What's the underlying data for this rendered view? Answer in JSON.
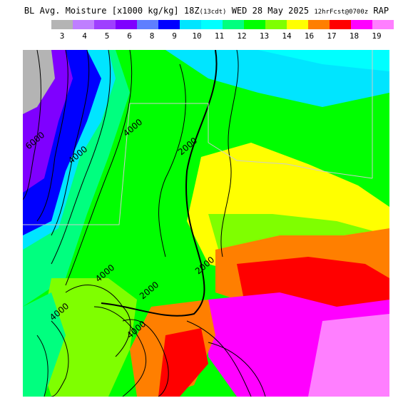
{
  "title": {
    "main": "BL Avg. Moisture [x1000 kg/kg] 18Z",
    "local": "(13cdt)",
    "date": " WED 28 May 2025 ",
    "forecast": "12hrFcst@0700z",
    "model": " RAP"
  },
  "legend": {
    "colors": [
      "#b4b4b4",
      "#bf7fff",
      "#9f3fff",
      "#7f00ff",
      "#5f7fff",
      "#0000ff",
      "#00e5ff",
      "#00ffff",
      "#00ff7f",
      "#00ff00",
      "#7fff00",
      "#ffff00",
      "#ff7f00",
      "#ff0000",
      "#ff00ff",
      "#ff7fff"
    ],
    "ticks": [
      "3",
      "4",
      "5",
      "6",
      "8",
      "9",
      "10",
      "11",
      "12",
      "13",
      "14",
      "16",
      "17",
      "18",
      "19"
    ]
  },
  "contours": {
    "labels": [
      "6000",
      "4000",
      "4000",
      "2000",
      "2000",
      "4000",
      "2000",
      "4000",
      "4000"
    ]
  }
}
